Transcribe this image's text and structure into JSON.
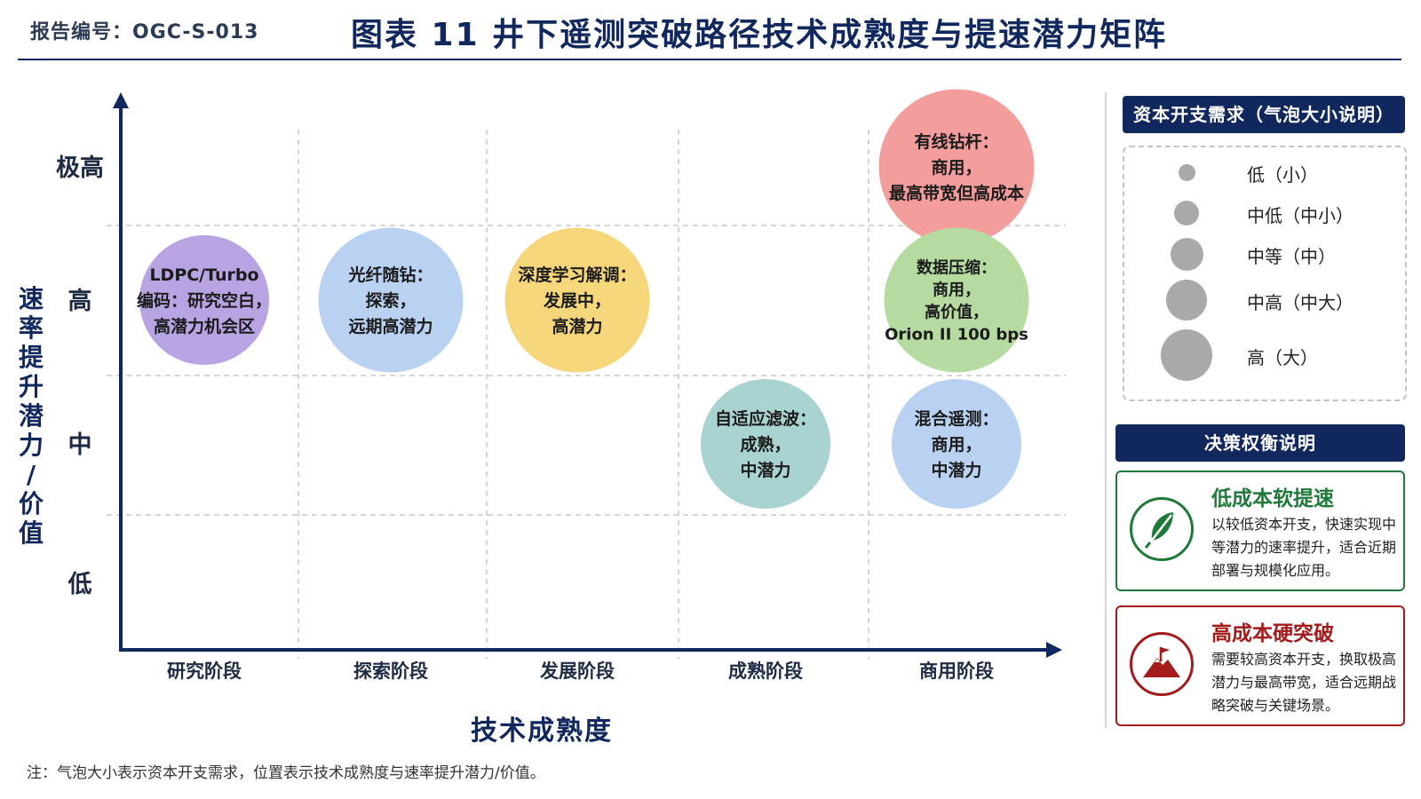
{
  "header": {
    "report_no": "报告编号：OGC-S-013",
    "title": "图表 11 井下遥测突破路径技术成熟度与提速潜力矩阵"
  },
  "chart_data": {
    "type": "scatter",
    "title": "图表 11 井下遥测突破路径技术成熟度与提速潜力矩阵",
    "xlabel": "技术成熟度",
    "ylabel": "速率提升潜力/价值",
    "x_categories": [
      "研究阶段",
      "探索阶段",
      "发展阶段",
      "成熟阶段",
      "商用阶段"
    ],
    "y_categories": [
      "低",
      "中",
      "高",
      "极高"
    ],
    "grid": true,
    "points": [
      {
        "lines": [
          "LDPC/Turbo",
          "编码：研究空白，",
          "高潜力机会区"
        ],
        "x": 0,
        "y": 2,
        "size": 2,
        "color": "#b8a4e3"
      },
      {
        "lines": [
          "光纤随钻：",
          "探索，",
          "远期高潜力"
        ],
        "x": 1,
        "y": 2,
        "size": 3,
        "color": "#b9d2f1"
      },
      {
        "lines": [
          "深度学习解调：",
          "发展中，",
          "高潜力"
        ],
        "x": 2,
        "y": 2,
        "size": 3,
        "color": "#f5d67a"
      },
      {
        "lines": [
          "自适应滤波：",
          "成熟，",
          "中潜力"
        ],
        "x": 3,
        "y": 1,
        "size": 2,
        "color": "#a9d3d0"
      },
      {
        "lines": [
          "有线钻杆：",
          "商用，",
          "最高带宽但高成本"
        ],
        "x": 4,
        "y": 3,
        "size": 4,
        "color": "#f49d9d"
      },
      {
        "lines": [
          "数据压缩：",
          "商用，",
          "高价值，",
          "Orion II 100 bps"
        ],
        "x": 4,
        "y": 2,
        "size": 3,
        "color": "#b5dba1"
      },
      {
        "lines": [
          "混合遥测：",
          "商用，",
          "中潜力"
        ],
        "x": 4,
        "y": 1,
        "size": 2,
        "color": "#b9d2f1"
      }
    ]
  },
  "legend": {
    "title": "资本开支需求（气泡大小说明）",
    "items": [
      {
        "label": "低（小）",
        "size": 0
      },
      {
        "label": "中低（中小）",
        "size": 1
      },
      {
        "label": "中等（中）",
        "size": 2
      },
      {
        "label": "中高（中大）",
        "size": 3
      },
      {
        "label": "高（大）",
        "size": 4
      }
    ]
  },
  "decision": {
    "title": "决策权衡说明",
    "cards": [
      {
        "title": "低成本软提速",
        "desc": "以较低资本开支，快速实现中等潜力的速率提升，适合近期部署与规模化应用。",
        "color": "#1f7a3a",
        "icon": "feather-icon"
      },
      {
        "title": "高成本硬突破",
        "desc": "需要较高资本开支，换取极高潜力与最高带宽，适合远期战略突破与关键场景。",
        "color": "#a31b1b",
        "icon": "mountain-flag-icon"
      }
    ]
  },
  "footnote": "注：气泡大小表示资本开支需求，位置表示技术成熟度与速率提升潜力/价值。"
}
